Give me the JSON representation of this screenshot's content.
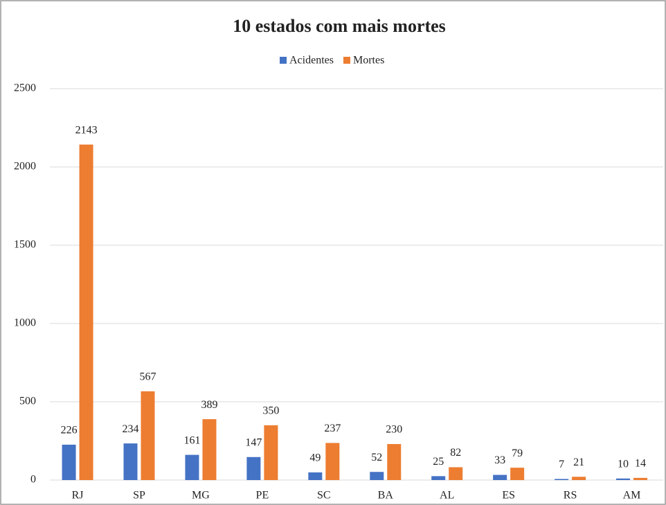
{
  "chart_data": {
    "type": "bar",
    "title": "10 estados com mais mortes",
    "categories": [
      "RJ",
      "SP",
      "MG",
      "PE",
      "SC",
      "BA",
      "AL",
      "ES",
      "RS",
      "AM"
    ],
    "series": [
      {
        "name": "Acidentes",
        "color": "#4472c4",
        "values": [
          226,
          234,
          161,
          147,
          49,
          52,
          25,
          33,
          7,
          10
        ]
      },
      {
        "name": "Mortes",
        "color": "#ed7d31",
        "values": [
          2143,
          567,
          389,
          350,
          237,
          230,
          82,
          79,
          21,
          14
        ]
      }
    ],
    "ylim": [
      0,
      2500
    ],
    "yticks": [
      0,
      500,
      1000,
      1500,
      2000,
      2500
    ],
    "grid": true,
    "legend": "top"
  }
}
